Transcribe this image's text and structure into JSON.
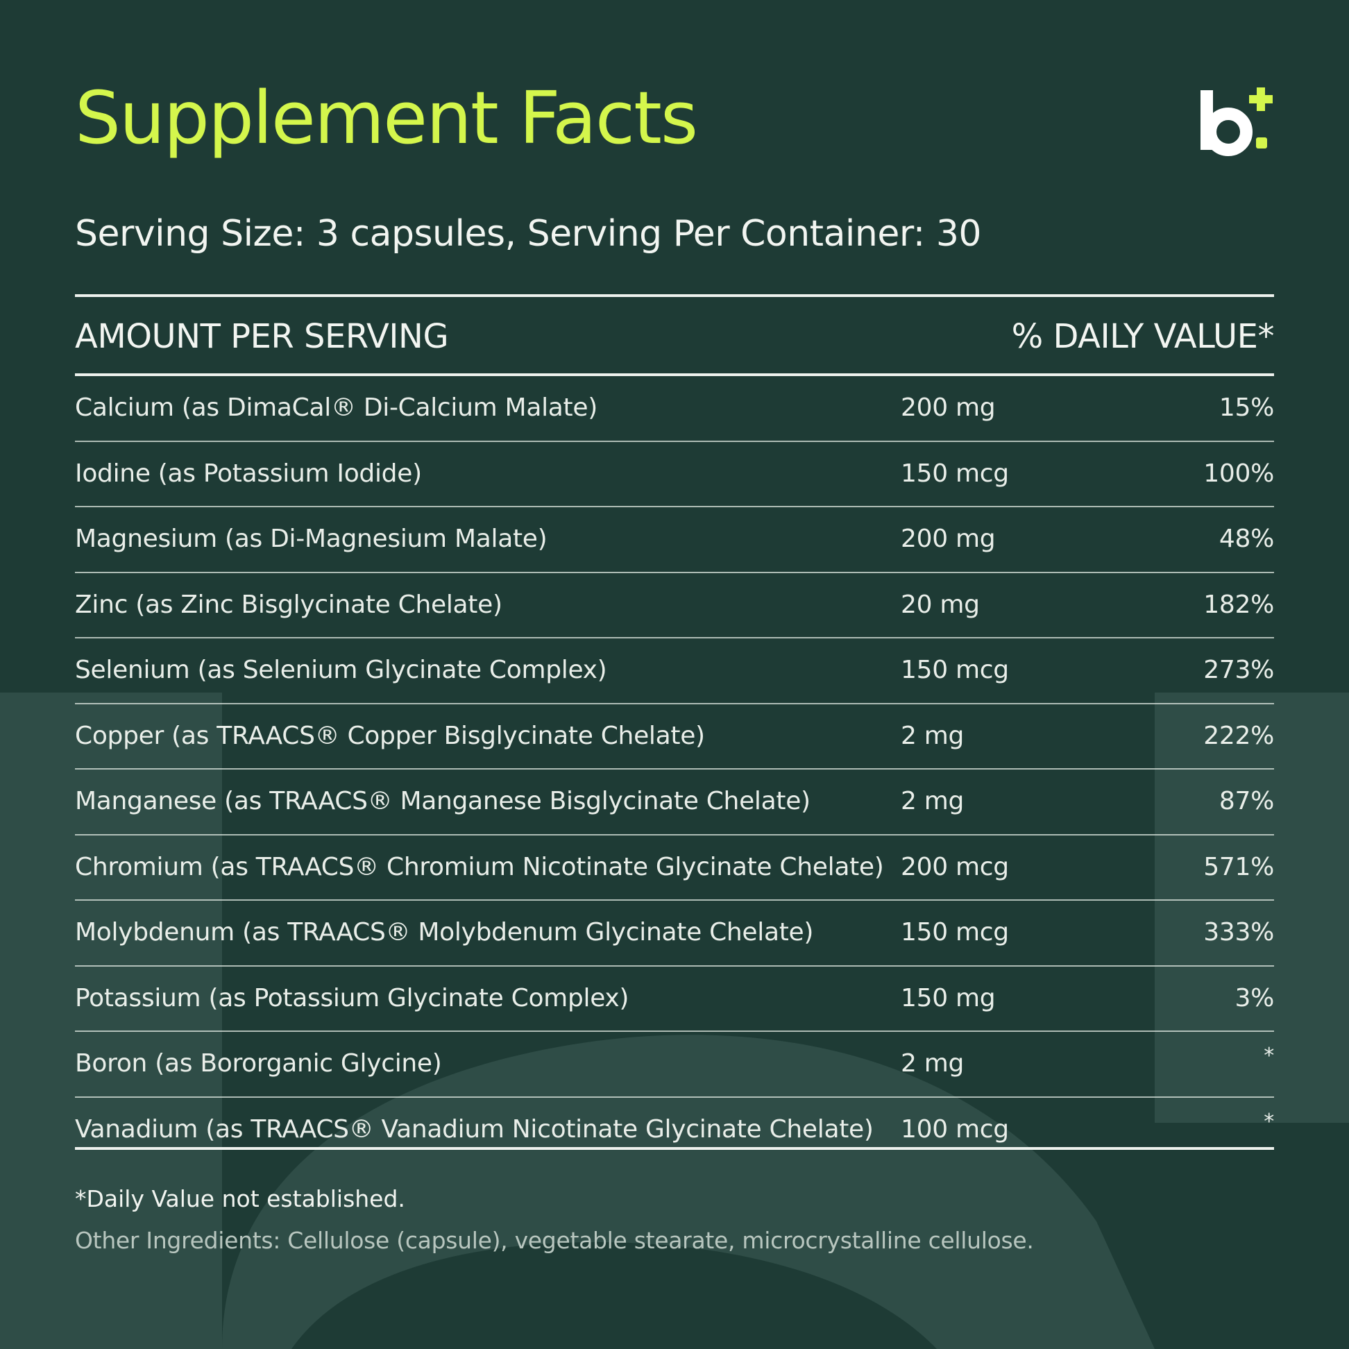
{
  "colors": {
    "background": "#1e3b35",
    "watermark": "#2f4d47",
    "title": "#d4f64c",
    "text": "#f2f5f1",
    "muted_text": "#b8c6bf",
    "logo_letter": "#ffffff",
    "logo_accent": "#d4f64c"
  },
  "brand": {
    "logo_letter": "b",
    "logo_icon": "plus-icon"
  },
  "title": "Supplement Facts",
  "serving": "Serving Size: 3 capsules, Serving Per Container: 30",
  "table": {
    "header_left": "AMOUNT PER SERVING",
    "header_right": "% DAILY VALUE*",
    "rows": [
      {
        "name": "Calcium (as DimaCal® Di-Calcium Malate)",
        "amount": "200 mg",
        "dv": "15%"
      },
      {
        "name": "Iodine (as Potassium Iodide)",
        "amount": "150 mcg",
        "dv": "100%"
      },
      {
        "name": "Magnesium (as Di-Magnesium Malate)",
        "amount": "200 mg",
        "dv": "48%"
      },
      {
        "name": "Zinc (as Zinc Bisglycinate Chelate)",
        "amount": "20 mg",
        "dv": "182%"
      },
      {
        "name": "Selenium (as Selenium Glycinate Complex)",
        "amount": "150 mcg",
        "dv": "273%"
      },
      {
        "name": "Copper (as TRAACS® Copper Bisglycinate Chelate)",
        "amount": "2 mg",
        "dv": "222%"
      },
      {
        "name": "Manganese (as TRAACS® Manganese Bisglycinate Chelate)",
        "amount": "2 mg",
        "dv": "87%"
      },
      {
        "name": "Chromium (as TRAACS® Chromium Nicotinate Glycinate Chelate)",
        "amount": "200 mcg",
        "dv": "571%"
      },
      {
        "name": "Molybdenum (as TRAACS® Molybdenum Glycinate Chelate)",
        "amount": "150 mcg",
        "dv": "333%"
      },
      {
        "name": "Potassium (as Potassium Glycinate Complex)",
        "amount": "150 mg",
        "dv": "3%"
      },
      {
        "name": "Boron (as Bororganic Glycine)",
        "amount": "2 mg",
        "dv": "*"
      },
      {
        "name": "Vanadium (as TRAACS® Vanadium Nicotinate Glycinate Chelate)",
        "amount": "100 mcg",
        "dv": "*"
      }
    ]
  },
  "footnote": "*Daily Value not established.",
  "other_ingredients": "Other Ingredients: Cellulose (capsule), vegetable stearate, microcrystalline cellulose."
}
